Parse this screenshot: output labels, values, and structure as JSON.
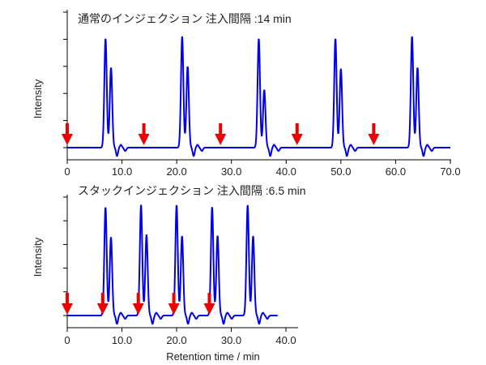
{
  "chart_data": [
    {
      "type": "line",
      "title": "通常のインジェクション 注入間隔 :14 min",
      "xlabel": "",
      "ylabel": "Intensity",
      "xlim": [
        0,
        70
      ],
      "x_ticks": [
        "0",
        "10.0",
        "20.0",
        "30.0",
        "40.0",
        "50.0",
        "60.0",
        "70.0"
      ],
      "x_tick_values": [
        0,
        10,
        20,
        30,
        40,
        50,
        60,
        70
      ],
      "y_tick_count": 6,
      "grid": false,
      "line_color": "#0000ee",
      "marker_color": "#ee0000",
      "trace_end": 70,
      "series": [
        {
          "values": [
            {
              "x": 7.0,
              "y": 0.98
            },
            {
              "x": 8.0,
              "y": 0.72
            },
            {
              "x": 21.0,
              "y": 1.0
            },
            {
              "x": 22.0,
              "y": 0.73
            },
            {
              "x": 35.0,
              "y": 0.98
            },
            {
              "x": 36.0,
              "y": 0.52
            },
            {
              "x": 49.0,
              "y": 0.98
            },
            {
              "x": 50.0,
              "y": 0.71
            },
            {
              "x": 63.0,
              "y": 1.0
            },
            {
              "x": 64.0,
              "y": 0.72
            }
          ]
        }
      ],
      "injection_markers": [
        0,
        14,
        28,
        42,
        56
      ]
    },
    {
      "type": "line",
      "title": "スタックインジェクション 注入間隔 :6.5 min",
      "xlabel": "Retention time / min",
      "ylabel": "Intensity",
      "xlim": [
        0,
        42
      ],
      "x_ticks": [
        "0",
        "10.0",
        "20.0",
        "30.0",
        "40.0"
      ],
      "x_tick_values": [
        0,
        10,
        20,
        30,
        40
      ],
      "y_tick_count": 6,
      "grid": false,
      "line_color": "#0000ee",
      "marker_color": "#ee0000",
      "trace_end": 38.5,
      "series": [
        {
          "values": [
            {
              "x": 7.0,
              "y": 0.98
            },
            {
              "x": 8.0,
              "y": 0.71
            },
            {
              "x": 13.5,
              "y": 1.0
            },
            {
              "x": 14.5,
              "y": 0.73
            },
            {
              "x": 20.0,
              "y": 1.0
            },
            {
              "x": 21.0,
              "y": 0.72
            },
            {
              "x": 26.5,
              "y": 0.98
            },
            {
              "x": 27.5,
              "y": 0.72
            },
            {
              "x": 33.0,
              "y": 1.0
            },
            {
              "x": 34.0,
              "y": 0.72
            }
          ]
        }
      ],
      "injection_markers": [
        0,
        6.5,
        13,
        19.5,
        26
      ]
    }
  ]
}
